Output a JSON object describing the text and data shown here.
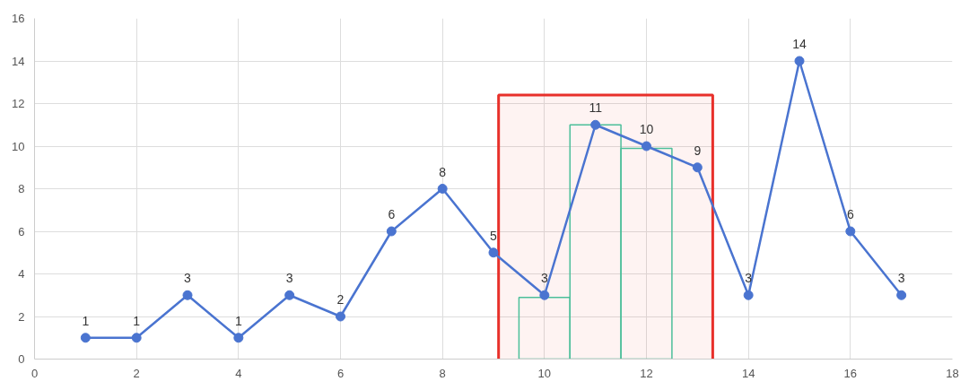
{
  "chart_data": {
    "type": "line",
    "xlim": [
      0,
      18
    ],
    "xticks": [
      0,
      2,
      4,
      6,
      8,
      10,
      12,
      14,
      16,
      18
    ],
    "ylim": [
      0,
      16
    ],
    "yticks": [
      0,
      2,
      4,
      6,
      8,
      10,
      12,
      14,
      16
    ],
    "grid": true,
    "marker": "circle",
    "line_style": "solid",
    "series": [
      {
        "type": "bar",
        "color": "#4cbf9a",
        "x": [
          10,
          11,
          12
        ],
        "values": [
          2.9,
          11,
          9.9
        ]
      },
      {
        "color": "#4a74d0",
        "x": [
          1,
          2,
          3,
          4,
          5,
          6,
          7,
          8,
          9,
          10,
          11,
          12,
          13,
          14,
          15,
          16,
          17
        ],
        "values": [
          1,
          1,
          3,
          1,
          3,
          2,
          6,
          8,
          5,
          3,
          11,
          10,
          9,
          3,
          14,
          6,
          3
        ],
        "value_labels": [
          "1",
          "1",
          "3",
          "1",
          "3",
          "2",
          "6",
          "8",
          "5",
          "3",
          "11",
          "10",
          "9",
          "3",
          "14",
          "6",
          "3"
        ]
      }
    ],
    "bands": [
      {
        "axis": "x",
        "from": 9.1,
        "to": 13.3,
        "color": "#e8302a"
      }
    ]
  }
}
